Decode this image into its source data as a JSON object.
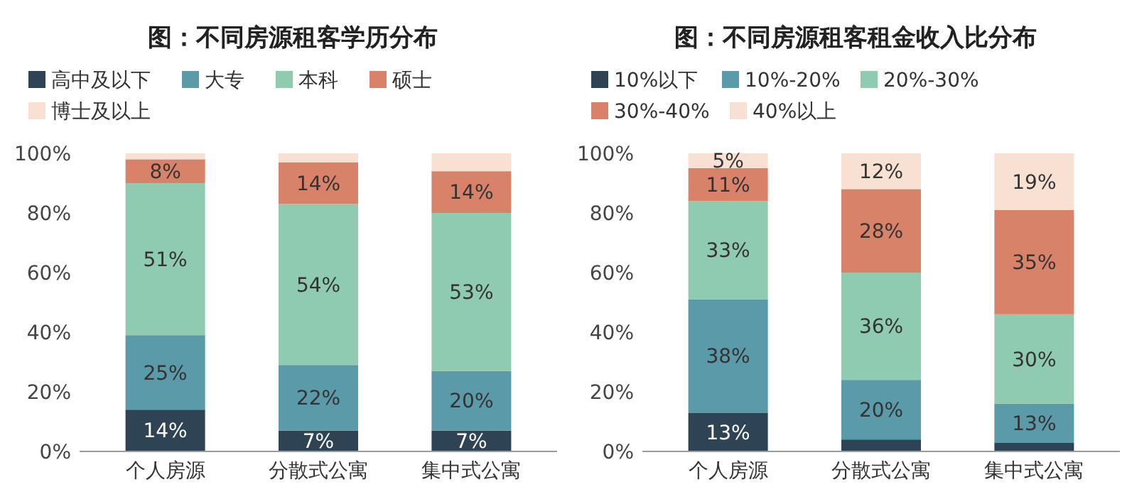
{
  "chart_data": [
    {
      "type": "bar",
      "title": "图：不同房源租客学历分布",
      "stacked": true,
      "legend": "top",
      "categories": [
        "个人房源",
        "分散式公寓",
        "集中式公寓"
      ],
      "ylim": [
        0,
        100
      ],
      "yticks": [
        {
          "value": 0,
          "label": "0%"
        },
        {
          "value": 20,
          "label": "20%"
        },
        {
          "value": 40,
          "label": "40%"
        },
        {
          "value": 60,
          "label": "60%"
        },
        {
          "value": 80,
          "label": "80%"
        },
        {
          "value": 100,
          "label": "100%"
        }
      ],
      "series": [
        {
          "name": "高中及以下",
          "color": "#2e4454",
          "values": [
            14,
            7,
            7
          ],
          "value_labels": [
            "14%",
            "7%",
            "7%"
          ]
        },
        {
          "name": "大专",
          "color": "#5b9aa8",
          "values": [
            25,
            22,
            20
          ],
          "value_labels": [
            "25%",
            "22%",
            "20%"
          ]
        },
        {
          "name": "本科",
          "color": "#8fcbb0",
          "values": [
            51,
            54,
            53
          ],
          "value_labels": [
            "51%",
            "54%",
            "53%"
          ]
        },
        {
          "name": "硕士",
          "color": "#d9826a",
          "values": [
            8,
            14,
            14
          ],
          "value_labels": [
            "8%",
            "14%",
            "14%"
          ]
        },
        {
          "name": "博士及以上",
          "color": "#f8e0d2",
          "values": [
            2,
            3,
            6
          ],
          "value_labels": [
            null,
            null,
            null
          ]
        }
      ]
    },
    {
      "type": "bar",
      "title": "图：不同房源租客租金收入比分布",
      "stacked": true,
      "legend": "top",
      "categories": [
        "个人房源",
        "分散式公寓",
        "集中式公寓"
      ],
      "ylim": [
        0,
        100
      ],
      "yticks": [
        {
          "value": 0,
          "label": "0%"
        },
        {
          "value": 20,
          "label": "20%"
        },
        {
          "value": 40,
          "label": "40%"
        },
        {
          "value": 60,
          "label": "60%"
        },
        {
          "value": 80,
          "label": "80%"
        },
        {
          "value": 100,
          "label": "100%"
        }
      ],
      "series": [
        {
          "name": "10%以下",
          "color": "#2e4454",
          "values": [
            13,
            4,
            3
          ],
          "value_labels": [
            "13%",
            null,
            null
          ]
        },
        {
          "name": "10%-20%",
          "color": "#5b9aa8",
          "values": [
            38,
            20,
            13
          ],
          "value_labels": [
            "38%",
            "20%",
            "13%"
          ]
        },
        {
          "name": "20%-30%",
          "color": "#8fcbb0",
          "values": [
            33,
            36,
            30
          ],
          "value_labels": [
            "33%",
            "36%",
            "30%"
          ]
        },
        {
          "name": "30%-40%",
          "color": "#d9826a",
          "values": [
            11,
            28,
            35
          ],
          "value_labels": [
            "11%",
            "28%",
            "35%"
          ]
        },
        {
          "name": "40%以上",
          "color": "#f8e0d2",
          "values": [
            5,
            12,
            19
          ],
          "value_labels": [
            "5%",
            "12%",
            "19%"
          ]
        }
      ]
    }
  ]
}
